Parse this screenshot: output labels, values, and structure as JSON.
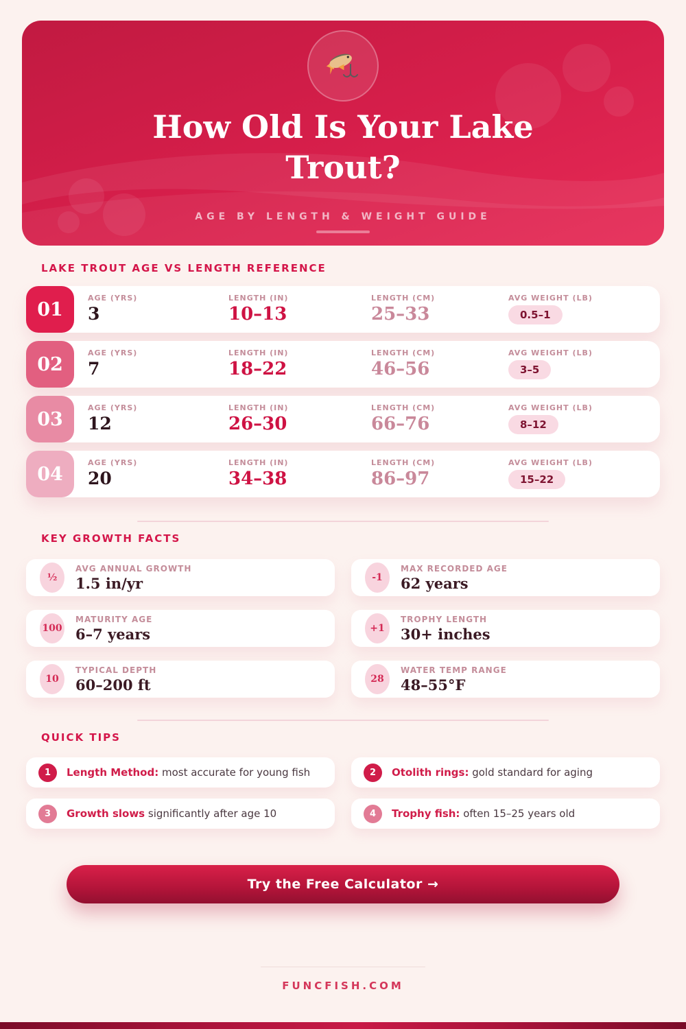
{
  "header": {
    "title_line1": "How Old Is Your Lake",
    "title_line2": "Trout?",
    "subtitle": "AGE BY LENGTH & WEIGHT GUIDE",
    "logo_icon": "fishing-fish-and-hook-icon",
    "bg_gradient": [
      "#c11a41",
      "#e62a55"
    ]
  },
  "reference_table": {
    "heading": "LAKE TROUT AGE VS LENGTH REFERENCE",
    "column_labels": {
      "age": "AGE (YRS)",
      "length_in": "LENGTH (IN)",
      "length_cm": "LENGTH (CM)",
      "weight": "AVG WEIGHT (LB)"
    },
    "rows": [
      {
        "index": "01",
        "badge_color": "#e01e4d",
        "age": "3",
        "length_in": "10–13",
        "length_cm": "25–33",
        "weight_lb": "0.5–1"
      },
      {
        "index": "02",
        "badge_color": "#e25f80",
        "age": "7",
        "length_in": "18–22",
        "length_cm": "46–56",
        "weight_lb": "3–5"
      },
      {
        "index": "03",
        "badge_color": "#e88ba4",
        "age": "12",
        "length_in": "26–30",
        "length_cm": "66–76",
        "weight_lb": "8–12"
      },
      {
        "index": "04",
        "badge_color": "#eeadc0",
        "age": "20",
        "length_in": "34–38",
        "length_cm": "86–97",
        "weight_lb": "15–22"
      }
    ]
  },
  "growth_facts": {
    "heading": "KEY GROWTH FACTS",
    "facts": [
      {
        "badge": "½",
        "label": "AVG ANNUAL GROWTH",
        "value": "1.5 in/yr"
      },
      {
        "badge": "-1",
        "label": "MAX RECORDED AGE",
        "value": "62 years"
      },
      {
        "badge": "100",
        "label": "MATURITY AGE",
        "value": "6–7 years"
      },
      {
        "badge": "+1",
        "label": "TROPHY LENGTH",
        "value": "30+ inches"
      },
      {
        "badge": "10",
        "label": "TYPICAL DEPTH",
        "value": "60–200 ft"
      },
      {
        "badge": "28",
        "label": "WATER TEMP RANGE",
        "value": "48–55°F"
      }
    ]
  },
  "quick_tips": {
    "heading": "QUICK TIPS",
    "tips": [
      {
        "num": "1",
        "badge_color": "#d01c49",
        "bold": "Length Method:",
        "rest": " most accurate for young fish"
      },
      {
        "num": "2",
        "badge_color": "#d01c49",
        "bold": "Otolith rings:",
        "rest": " gold standard for aging"
      },
      {
        "num": "3",
        "badge_color": "#e27b95",
        "bold": "Growth slows",
        "rest": " significantly after age 10"
      },
      {
        "num": "4",
        "badge_color": "#e27b95",
        "bold": "Trophy fish:",
        "rest": " often 15–25 years old"
      }
    ]
  },
  "cta": {
    "label": "Try the Free Calculator →"
  },
  "footer": {
    "domain": "FUNCFISH.COM"
  },
  "colors": {
    "page_bg": "#fcf2ef",
    "accent": "#d4164a",
    "value_crimson": "#ce1243",
    "muted_rose": "#c9889a",
    "label_mauve": "#c48d9a",
    "pill_bg": "#f9dae3",
    "pill_text": "#7e1431",
    "dark_text": "#2e151d"
  }
}
